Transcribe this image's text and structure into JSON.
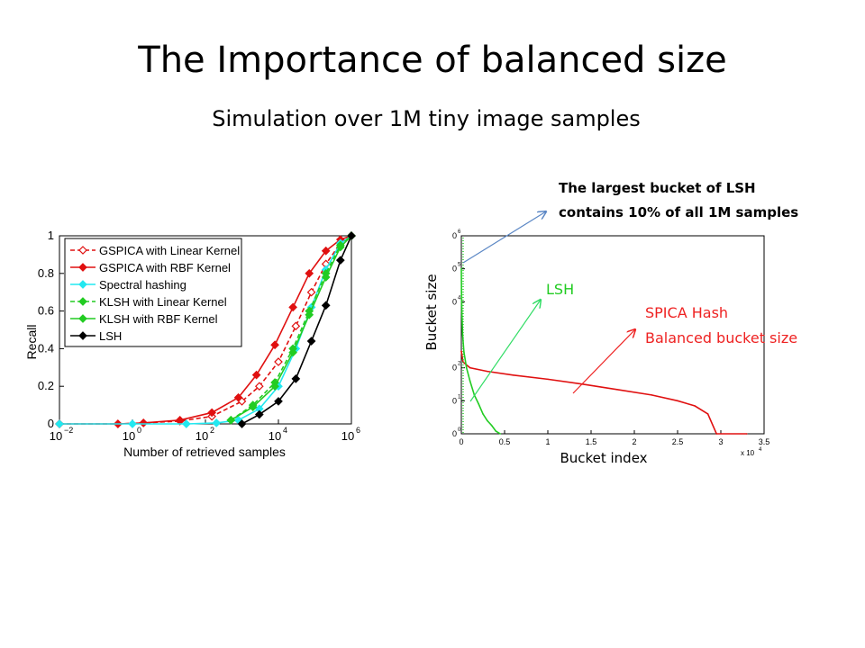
{
  "slide": {
    "title": "The Importance of balanced size",
    "subtitle": "Simulation over 1M tiny image samples"
  },
  "annotations": {
    "largest_bucket_line1": "The largest bucket of LSH",
    "largest_bucket_line2": "contains 10% of all 1M samples",
    "lsh": "LSH",
    "spica_line1": "SPICA Hash",
    "spica_line2": "Balanced bucket size",
    "bucket_size_label": "Bucket size",
    "bucket_index_label": "Bucket index"
  },
  "colors": {
    "red": "#e01010",
    "red_annotation": "#ee2222",
    "green": "#22cc22",
    "cyan": "#22e8f0",
    "black": "#000000",
    "blue_arrow": "#5b87c5",
    "green_arrow": "#33dd66"
  },
  "chart_data": [
    {
      "type": "line",
      "xscale": "log",
      "xlim": [
        0.01,
        1000000
      ],
      "ylim": [
        0,
        1
      ],
      "xlabel": "Number of retrieved samples",
      "ylabel": "Recall",
      "x_ticks": [
        {
          "base": "10",
          "exp": "−2",
          "value": 0.01
        },
        {
          "base": "10",
          "exp": "0",
          "value": 1
        },
        {
          "base": "10",
          "exp": "2",
          "value": 100
        },
        {
          "base": "10",
          "exp": "4",
          "value": 10000
        },
        {
          "base": "10",
          "exp": "6",
          "value": 1000000
        }
      ],
      "y_ticks": [
        {
          "label": "0",
          "value": 0
        },
        {
          "label": "0.2",
          "value": 0.2
        },
        {
          "label": "0.4",
          "value": 0.4
        },
        {
          "label": "0.6",
          "value": 0.6
        },
        {
          "label": "0.8",
          "value": 0.8
        },
        {
          "label": "1",
          "value": 1
        }
      ],
      "legend_position": "top-left",
      "series": [
        {
          "name": "GSPICA with Linear Kernel",
          "color": "#e01010",
          "dash": "dashed",
          "marker": "diamond-open",
          "x": [
            0.01,
            0.4,
            2,
            20,
            150,
            1000,
            3000,
            10000,
            30000,
            80000,
            200000,
            500000,
            1000000
          ],
          "y": [
            0,
            0,
            0.005,
            0.015,
            0.04,
            0.12,
            0.2,
            0.33,
            0.52,
            0.7,
            0.85,
            0.96,
            1.0
          ]
        },
        {
          "name": "GSPICA with RBF Kernel",
          "color": "#e01010",
          "dash": "solid",
          "marker": "diamond-filled",
          "x": [
            0.01,
            0.4,
            2,
            20,
            150,
            800,
            2500,
            8000,
            25000,
            70000,
            200000,
            500000,
            1000000
          ],
          "y": [
            0,
            0,
            0.005,
            0.02,
            0.06,
            0.14,
            0.26,
            0.42,
            0.62,
            0.8,
            0.92,
            0.98,
            1.0
          ]
        },
        {
          "name": "Spectral hashing",
          "color": "#22e8f0",
          "dash": "solid",
          "marker": "diamond-filled",
          "x": [
            0.01,
            1,
            30,
            200,
            800,
            3000,
            10000,
            30000,
            80000,
            200000,
            500000,
            1000000
          ],
          "y": [
            0,
            0,
            0,
            0.005,
            0.02,
            0.08,
            0.2,
            0.4,
            0.62,
            0.82,
            0.96,
            1.0
          ]
        },
        {
          "name": "KLSH with Linear Kernel",
          "color": "#22cc22",
          "dash": "dashed",
          "marker": "diamond-filled",
          "x": [
            500,
            2000,
            8000,
            25000,
            70000,
            200000,
            500000,
            1000000
          ],
          "y": [
            0.02,
            0.1,
            0.22,
            0.4,
            0.6,
            0.8,
            0.95,
            1.0
          ]
        },
        {
          "name": "KLSH with RBF Kernel",
          "color": "#22cc22",
          "dash": "solid",
          "marker": "diamond-filled",
          "x": [
            500,
            2000,
            8000,
            25000,
            70000,
            200000,
            500000,
            1000000
          ],
          "y": [
            0.02,
            0.09,
            0.2,
            0.38,
            0.58,
            0.78,
            0.94,
            1.0
          ]
        },
        {
          "name": "LSH",
          "color": "#000000",
          "dash": "solid",
          "marker": "diamond-filled",
          "x": [
            1000,
            3000,
            10000,
            30000,
            80000,
            200000,
            500000,
            1000000
          ],
          "y": [
            0,
            0.05,
            0.12,
            0.24,
            0.44,
            0.63,
            0.87,
            1.0
          ]
        }
      ]
    },
    {
      "type": "line",
      "yscale": "log",
      "xlim": [
        0,
        35000
      ],
      "ylim": [
        1,
        1000000
      ],
      "x_ticks": [
        {
          "label": "0",
          "value": 0
        },
        {
          "label": "0.5",
          "value": 5000
        },
        {
          "label": "1",
          "value": 10000
        },
        {
          "label": "1.5",
          "value": 15000
        },
        {
          "label": "2",
          "value": 20000
        },
        {
          "label": "2.5",
          "value": 25000
        },
        {
          "label": "3",
          "value": 30000
        },
        {
          "label": "3.5",
          "value": 35000
        }
      ],
      "x_multiplier_base": "x 10",
      "x_multiplier_exp": "4",
      "y_ticks": [
        {
          "label": "0",
          "exp": "0",
          "value": 1
        },
        {
          "label": "0",
          "exp": "1",
          "value": 10
        },
        {
          "label": "0",
          "exp": "2",
          "value": 100
        },
        {
          "label": "0",
          "exp": "4",
          "value": 10000
        },
        {
          "label": "0",
          "exp": "5",
          "value": 100000
        },
        {
          "label": "0",
          "exp": "6",
          "value": 1000000
        }
      ],
      "series": [
        {
          "key": "spica",
          "color": "#e01010",
          "x": [
            0,
            200,
            1000,
            3000,
            6000,
            10000,
            14000,
            18000,
            22000,
            25000,
            27000,
            28500,
            29500,
            33000
          ],
          "y": [
            320,
            150,
            100,
            78,
            60,
            45,
            32,
            22,
            15,
            10,
            7,
            4,
            1,
            1
          ]
        },
        {
          "key": "lsh",
          "color": "#22cc22",
          "x": [
            0,
            20,
            60,
            150,
            300,
            600,
            1000,
            1500,
            2000,
            2500,
            3000,
            3500,
            4000,
            4500
          ],
          "y": [
            100000,
            20000,
            5000,
            1000,
            300,
            100,
            40,
            15,
            8,
            4,
            2.5,
            1.8,
            1.2,
            1
          ]
        }
      ]
    }
  ]
}
